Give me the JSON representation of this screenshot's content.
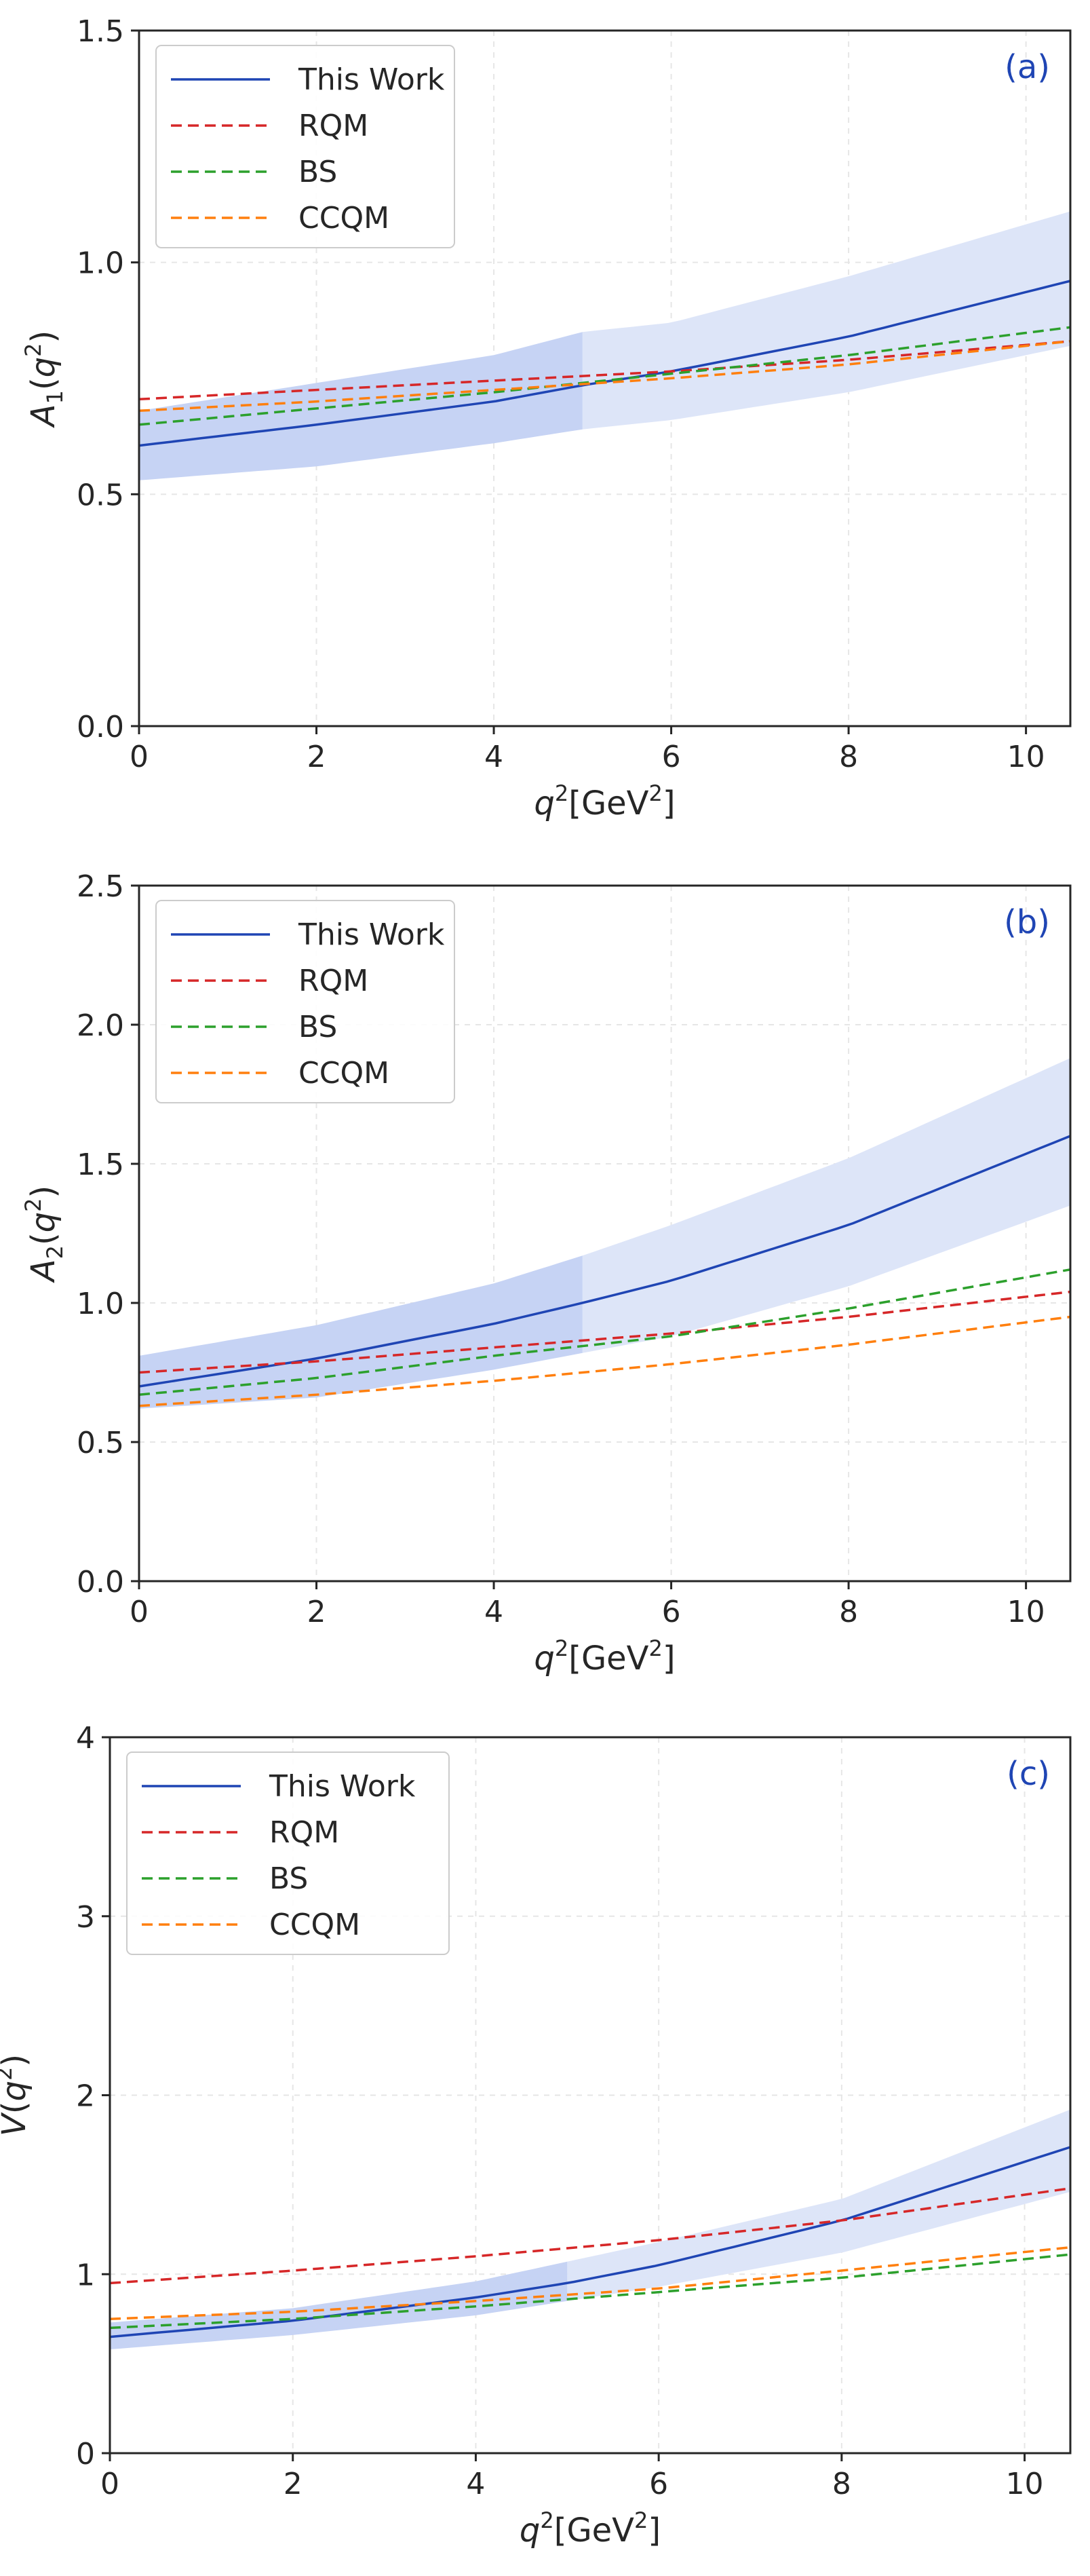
{
  "chart_data": [
    {
      "type": "line",
      "panel_label": "(a)",
      "ylabel": "A1(q²)",
      "ylabel_main": "A",
      "ylabel_sub": "1",
      "xlabel": "q²[GeV²]",
      "xlim": [
        0,
        10.5
      ],
      "ylim": [
        0,
        1.5
      ],
      "xticks": [
        "0",
        "2",
        "4",
        "6",
        "8",
        "10"
      ],
      "yticks": [
        "0.0",
        "0.5",
        "1.0",
        "1.5"
      ],
      "grid": true,
      "legend_position": "top-left",
      "band": {
        "x": [
          0,
          2,
          4,
          5,
          6,
          8,
          10.5
        ],
        "lower": [
          0.53,
          0.56,
          0.61,
          0.64,
          0.66,
          0.72,
          0.82
        ],
        "upper": [
          0.68,
          0.74,
          0.8,
          0.85,
          0.87,
          0.97,
          1.11
        ],
        "dark_until": 5
      },
      "series": [
        {
          "name": "This Work",
          "style": "solid",
          "color": "#1f45b4",
          "x": [
            0,
            2,
            4,
            5,
            6,
            8,
            10.5
          ],
          "y": [
            0.605,
            0.65,
            0.7,
            0.735,
            0.765,
            0.84,
            0.96
          ]
        },
        {
          "name": "RQM",
          "style": "dashed",
          "color": "#d62728",
          "x": [
            0,
            2,
            4,
            6,
            8,
            10.5
          ],
          "y": [
            0.705,
            0.725,
            0.745,
            0.765,
            0.79,
            0.83
          ]
        },
        {
          "name": "BS",
          "style": "dashed",
          "color": "#2ca02c",
          "x": [
            0,
            2,
            4,
            6,
            8,
            10.5
          ],
          "y": [
            0.65,
            0.685,
            0.72,
            0.76,
            0.8,
            0.86
          ]
        },
        {
          "name": "CCQM",
          "style": "dashed",
          "color": "#ff7f0e",
          "x": [
            0,
            2,
            4,
            6,
            8,
            10.5
          ],
          "y": [
            0.68,
            0.7,
            0.725,
            0.75,
            0.78,
            0.83
          ]
        }
      ]
    },
    {
      "type": "line",
      "panel_label": "(b)",
      "ylabel": "A2(q²)",
      "ylabel_main": "A",
      "ylabel_sub": "2",
      "xlabel": "q²[GeV²]",
      "xlim": [
        0,
        10.5
      ],
      "ylim": [
        0,
        2.5
      ],
      "xticks": [
        "0",
        "2",
        "4",
        "6",
        "8",
        "10"
      ],
      "yticks": [
        "0.0",
        "0.5",
        "1.0",
        "1.5",
        "2.0",
        "2.5"
      ],
      "grid": true,
      "legend_position": "top-left",
      "band": {
        "x": [
          0,
          2,
          4,
          5,
          6,
          8,
          10.5
        ],
        "lower": [
          0.62,
          0.66,
          0.76,
          0.82,
          0.88,
          1.06,
          1.35
        ],
        "upper": [
          0.81,
          0.92,
          1.07,
          1.17,
          1.28,
          1.52,
          1.88
        ],
        "dark_until": 5
      },
      "series": [
        {
          "name": "This Work",
          "style": "solid",
          "color": "#1f45b4",
          "x": [
            0,
            2,
            4,
            5,
            6,
            8,
            10.5
          ],
          "y": [
            0.7,
            0.8,
            0.925,
            1.0,
            1.08,
            1.28,
            1.6
          ]
        },
        {
          "name": "RQM",
          "style": "dashed",
          "color": "#d62728",
          "x": [
            0,
            2,
            4,
            6,
            8,
            10.5
          ],
          "y": [
            0.75,
            0.79,
            0.84,
            0.89,
            0.95,
            1.04
          ]
        },
        {
          "name": "BS",
          "style": "dashed",
          "color": "#2ca02c",
          "x": [
            0,
            2,
            4,
            6,
            8,
            10.5
          ],
          "y": [
            0.67,
            0.73,
            0.81,
            0.88,
            0.98,
            1.12
          ]
        },
        {
          "name": "CCQM",
          "style": "dashed",
          "color": "#ff7f0e",
          "x": [
            0,
            2,
            4,
            6,
            8,
            10.5
          ],
          "y": [
            0.63,
            0.67,
            0.72,
            0.78,
            0.85,
            0.95
          ]
        }
      ]
    },
    {
      "type": "line",
      "panel_label": "(c)",
      "ylabel": "V(q²)",
      "ylabel_main": "V",
      "ylabel_sub": "",
      "xlabel": "q²[GeV²]",
      "xlim": [
        0,
        10.5
      ],
      "ylim": [
        0,
        4
      ],
      "xticks": [
        "0",
        "2",
        "4",
        "6",
        "8",
        "10"
      ],
      "yticks": [
        "0",
        "1",
        "2",
        "3",
        "4"
      ],
      "grid": true,
      "legend_position": "top-left",
      "band": {
        "x": [
          0,
          2,
          4,
          5,
          6,
          8,
          10.5
        ],
        "lower": [
          0.58,
          0.66,
          0.77,
          0.85,
          0.93,
          1.12,
          1.46
        ],
        "upper": [
          0.73,
          0.81,
          0.96,
          1.07,
          1.18,
          1.42,
          1.92
        ],
        "dark_until": 5
      },
      "series": [
        {
          "name": "This Work",
          "style": "solid",
          "color": "#1f45b4",
          "x": [
            0,
            2,
            4,
            5,
            6,
            8,
            10.5
          ],
          "y": [
            0.65,
            0.74,
            0.87,
            0.95,
            1.05,
            1.3,
            1.71
          ]
        },
        {
          "name": "RQM",
          "style": "dashed",
          "color": "#d62728",
          "x": [
            0,
            2,
            4,
            6,
            8,
            10.5
          ],
          "y": [
            0.95,
            1.02,
            1.1,
            1.19,
            1.3,
            1.48
          ]
        },
        {
          "name": "BS",
          "style": "dashed",
          "color": "#2ca02c",
          "x": [
            0,
            2,
            4,
            6,
            8,
            10.5
          ],
          "y": [
            0.7,
            0.75,
            0.82,
            0.9,
            0.98,
            1.11
          ]
        },
        {
          "name": "CCQM",
          "style": "dashed",
          "color": "#ff7f0e",
          "x": [
            0,
            2,
            4,
            6,
            8,
            10.5
          ],
          "y": [
            0.75,
            0.79,
            0.85,
            0.92,
            1.02,
            1.15
          ]
        }
      ]
    }
  ],
  "colors": {
    "band_light": "#dde5f8",
    "band_dark": "#c6d3f4",
    "axis": "#262626",
    "grid": "#e6e6e6",
    "panel_tag": "#1f45b4"
  }
}
